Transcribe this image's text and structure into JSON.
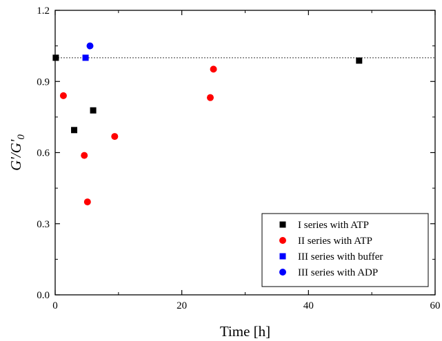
{
  "chart_data": {
    "type": "scatter",
    "xlabel": "Time [h]",
    "ylabel_main": "G'/G'",
    "ylabel_sub": "0",
    "xlim": [
      0,
      60
    ],
    "ylim": [
      0.0,
      1.2
    ],
    "x_ticks": [
      0,
      20,
      40,
      60
    ],
    "y_ticks": [
      0.0,
      0.3,
      0.6,
      0.9,
      1.2
    ],
    "x_tick_labels": [
      "0",
      "20",
      "40",
      "60"
    ],
    "y_tick_labels": [
      "0.0",
      "0.3",
      "0.6",
      "0.9",
      "1.2"
    ],
    "reference_line": {
      "y": 1.0,
      "style": "dotted"
    },
    "grid": false,
    "legend_position": "bottom-right",
    "series": [
      {
        "name": "I series with ATP",
        "marker": "square",
        "color": "#000000",
        "points": [
          {
            "x": 0.1,
            "y": 1.0
          },
          {
            "x": 3.0,
            "y": 0.695
          },
          {
            "x": 6.0,
            "y": 0.778
          },
          {
            "x": 48.0,
            "y": 0.988
          }
        ]
      },
      {
        "name": "II series with ATP",
        "marker": "circle",
        "color": "#ff0000",
        "points": [
          {
            "x": 1.3,
            "y": 0.84
          },
          {
            "x": 4.6,
            "y": 0.588
          },
          {
            "x": 5.1,
            "y": 0.392
          },
          {
            "x": 9.4,
            "y": 0.668
          },
          {
            "x": 24.5,
            "y": 0.832
          },
          {
            "x": 25.0,
            "y": 0.952
          }
        ]
      },
      {
        "name": "III series with buffer",
        "marker": "square",
        "color": "#0000ff",
        "points": [
          {
            "x": 4.8,
            "y": 1.0
          }
        ]
      },
      {
        "name": "III series with ADP",
        "marker": "circle",
        "color": "#0000ff",
        "points": [
          {
            "x": 5.5,
            "y": 1.05
          }
        ]
      }
    ]
  }
}
